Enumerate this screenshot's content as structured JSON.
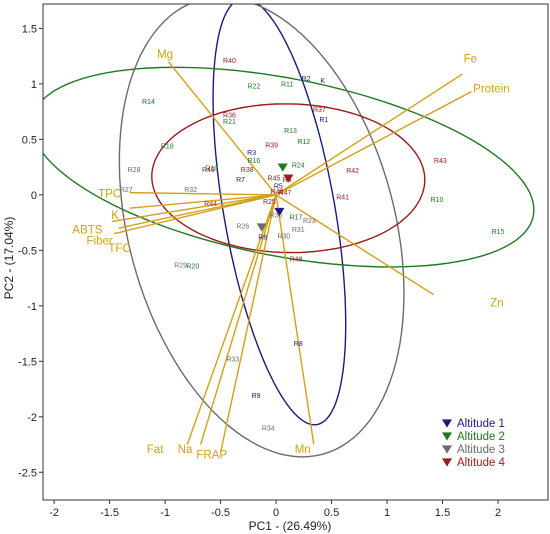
{
  "chart_data": {
    "type": "scatter",
    "subtype": "pca-biplot",
    "xlabel": "PC1 - (26.49%)",
    "ylabel": "PC2 - (17.04%)",
    "xlim": [
      -2.1,
      2.45
    ],
    "ylim": [
      -2.75,
      1.72
    ],
    "xticks": [
      -2,
      -1.5,
      -1,
      -0.5,
      0,
      0.5,
      1,
      1.5,
      2
    ],
    "yticks": [
      -2.5,
      -2,
      -1.5,
      -1,
      -0.5,
      0,
      0.5,
      1,
      1.5
    ],
    "grid": false,
    "legend_position": "bottom-right",
    "colors": {
      "altitude_1": "#1a1a80",
      "altitude_2": "#1f7a1f",
      "altitude_3": "#6b6b6b",
      "altitude_4": "#9b1b1b",
      "loading": "#d4a017",
      "ellipse_1": "#1a1a80",
      "ellipse_2": "#1f7a1f",
      "ellipse_3": "#6b6b6b",
      "ellipse_4": "#9b1b1b"
    },
    "series": [
      {
        "name": "Altitude 1",
        "color": "#1a1a80",
        "centroid": [
          0.03,
          -0.15
        ],
        "points": [
          {
            "label": "K",
            "x": 0.42,
            "y": 1.03
          },
          {
            "label": "R1",
            "x": 0.43,
            "y": 0.68
          },
          {
            "label": "R2",
            "x": 0.27,
            "y": 1.05
          },
          {
            "label": "R3",
            "x": -0.22,
            "y": 0.38
          },
          {
            "label": "R5",
            "x": 0.02,
            "y": 0.08
          },
          {
            "label": "R6",
            "x": -0.12,
            "y": -0.38
          },
          {
            "label": "R7",
            "x": -0.32,
            "y": 0.14
          },
          {
            "label": "R8",
            "x": 0.2,
            "y": -1.34
          },
          {
            "label": "R9",
            "x": -0.18,
            "y": -1.81
          }
        ]
      },
      {
        "name": "Altitude 2",
        "color": "#1f7a1f",
        "centroid": [
          0.06,
          0.25
        ],
        "points": [
          {
            "label": "R10",
            "x": 1.45,
            "y": -0.04
          },
          {
            "label": "R11",
            "x": 0.1,
            "y": 1.0
          },
          {
            "label": "R12",
            "x": 0.25,
            "y": 0.48
          },
          {
            "label": "R13",
            "x": 0.13,
            "y": 0.58
          },
          {
            "label": "R14",
            "x": -1.15,
            "y": 0.84
          },
          {
            "label": "R15",
            "x": 2.0,
            "y": -0.33
          },
          {
            "label": "R16",
            "x": -0.2,
            "y": 0.31
          },
          {
            "label": "R17",
            "x": 0.18,
            "y": -0.2
          },
          {
            "label": "R18",
            "x": -0.98,
            "y": 0.44
          },
          {
            "label": "R19",
            "x": -0.58,
            "y": 0.24
          },
          {
            "label": "R20",
            "x": -0.75,
            "y": -0.64
          },
          {
            "label": "R21",
            "x": -0.42,
            "y": 0.66
          },
          {
            "label": "R22",
            "x": -0.2,
            "y": 0.98
          },
          {
            "label": "R24",
            "x": 0.2,
            "y": 0.27
          }
        ]
      },
      {
        "name": "Altitude 3",
        "color": "#6b6b6b",
        "centroid": [
          -0.13,
          -0.29
        ],
        "points": [
          {
            "label": "R23",
            "x": 0.3,
            "y": -0.23
          },
          {
            "label": "R26",
            "x": -0.3,
            "y": -0.28
          },
          {
            "label": "R27",
            "x": -1.35,
            "y": 0.05
          },
          {
            "label": "R28",
            "x": -1.28,
            "y": 0.23
          },
          {
            "label": "R29",
            "x": -0.86,
            "y": -0.63
          },
          {
            "label": "R30",
            "x": 0.07,
            "y": -0.37
          },
          {
            "label": "R31",
            "x": 0.2,
            "y": -0.31
          },
          {
            "label": "R32",
            "x": -0.77,
            "y": 0.05
          },
          {
            "label": "R33",
            "x": -0.39,
            "y": -1.48
          },
          {
            "label": "R34",
            "x": -0.07,
            "y": -2.1
          },
          {
            "label": "R35",
            "x": 0.0,
            "y": -0.18
          }
        ]
      },
      {
        "name": "Altitude 4",
        "color": "#9b1b1b",
        "centroid": [
          0.11,
          0.15
        ],
        "points": [
          {
            "label": "R36",
            "x": -0.42,
            "y": 0.72
          },
          {
            "label": "R37",
            "x": 0.39,
            "y": 0.77
          },
          {
            "label": "R38",
            "x": -0.26,
            "y": 0.23
          },
          {
            "label": "R39",
            "x": -0.04,
            "y": 0.45
          },
          {
            "label": "R40",
            "x": -0.42,
            "y": 1.21
          },
          {
            "label": "R41",
            "x": 0.6,
            "y": -0.02
          },
          {
            "label": "R42",
            "x": 0.69,
            "y": 0.22
          },
          {
            "label": "R43",
            "x": 1.48,
            "y": 0.31
          },
          {
            "label": "R44",
            "x": -0.59,
            "y": -0.08
          },
          {
            "label": "R45",
            "x": -0.02,
            "y": 0.15
          },
          {
            "label": "R46",
            "x": 0.01,
            "y": 0.03
          },
          {
            "label": "R47",
            "x": 0.08,
            "y": 0.02
          },
          {
            "label": "R48",
            "x": 0.18,
            "y": -0.58
          },
          {
            "label": "R49",
            "x": -0.61,
            "y": 0.23
          },
          {
            "label": "R25",
            "x": -0.06,
            "y": -0.06
          },
          {
            "label": "R4",
            "x": 0.1,
            "y": 0.14
          }
        ]
      }
    ],
    "ellipses": [
      {
        "name": "Altitude 1",
        "color": "#1a1a80",
        "cx": 0.03,
        "cy": -0.15,
        "rx": 1.95,
        "ry": 0.5,
        "angle": -80
      },
      {
        "name": "Altitude 2",
        "color": "#1f7a1f",
        "cx": 0.06,
        "cy": 0.25,
        "rx": 2.3,
        "ry": 0.8,
        "angle": -11
      },
      {
        "name": "Altitude 3",
        "color": "#6b6b6b",
        "cx": -0.13,
        "cy": -0.29,
        "rx": 2.12,
        "ry": 1.2,
        "angle": -75
      },
      {
        "name": "Altitude 4",
        "color": "#9b1b1b",
        "cx": 0.11,
        "cy": 0.15,
        "rx": 1.23,
        "ry": 0.67,
        "angle": -1
      }
    ],
    "loadings": [
      {
        "label": "Mg",
        "x": -0.97,
        "y": 1.2
      },
      {
        "label": "Fe",
        "x": 1.68,
        "y": 1.09
      },
      {
        "label": "Protein",
        "x": 1.76,
        "y": 0.93
      },
      {
        "label": "TPC",
        "x": -1.32,
        "y": 0.02
      },
      {
        "label": "K",
        "x": -1.32,
        "y": -0.12
      },
      {
        "label": "ABTS",
        "x": -1.48,
        "y": -0.24
      },
      {
        "label": "Fiber",
        "x": -1.42,
        "y": -0.3
      },
      {
        "label": "TFC",
        "x": -1.46,
        "y": -0.35
      },
      {
        "label": "Zn",
        "x": 1.42,
        "y": -0.9
      },
      {
        "label": "Fat",
        "x": -0.8,
        "y": -2.25
      },
      {
        "label": "Na",
        "x": -0.68,
        "y": -2.25
      },
      {
        "label": "FRAP",
        "x": -0.5,
        "y": -2.32
      },
      {
        "label": "Mn",
        "x": 0.34,
        "y": -2.25
      }
    ],
    "loading_label_pos": {
      "Mg": [
        -1.0,
        1.27
      ],
      "Fe": [
        1.75,
        1.23
      ],
      "Protein": [
        1.94,
        0.96
      ],
      "TPC": [
        -1.5,
        0.01
      ],
      "K": [
        -1.45,
        -0.18
      ],
      "ABTS": [
        -1.7,
        -0.31
      ],
      "Fiber": [
        -1.59,
        -0.41
      ],
      "TFC": [
        -1.41,
        -0.48
      ],
      "Zn": [
        1.99,
        -0.97
      ],
      "Fat": [
        -1.09,
        -2.29
      ],
      "Na": [
        -0.82,
        -2.29
      ],
      "FRAP": [
        -0.58,
        -2.34
      ],
      "Mn": [
        0.24,
        -2.29
      ]
    },
    "legend": [
      {
        "label": "Altitude 1",
        "color": "#1a1a80"
      },
      {
        "label": "Altitude 2",
        "color": "#1f7a1f"
      },
      {
        "label": "Altitude 3",
        "color": "#6b6b6b"
      },
      {
        "label": "Altitude 4",
        "color": "#9b1b1b"
      }
    ]
  }
}
